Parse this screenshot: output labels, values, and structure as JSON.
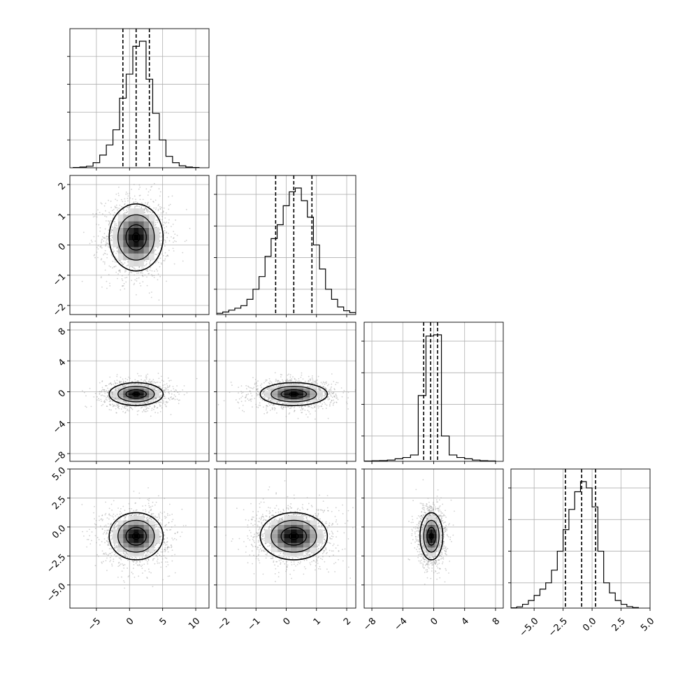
{
  "chart_data": {
    "type": "corner",
    "grid": true,
    "parameters": [
      {
        "range": [
          -9,
          12
        ],
        "x_ticks": [
          -5,
          0,
          5,
          10
        ],
        "x_tick_labels": [
          "−5",
          "0",
          "5",
          "10"
        ],
        "y_ticks": [],
        "y_tick_labels": [],
        "quantiles": [
          -1,
          1,
          3
        ],
        "hist_bins": [
          [
            -8.5,
            -7.5,
            0.002
          ],
          [
            -7.5,
            -6.5,
            0.006
          ],
          [
            -6.5,
            -5.5,
            0.012
          ],
          [
            -5.5,
            -4.5,
            0.04
          ],
          [
            -4.5,
            -3.5,
            0.1
          ],
          [
            -3.5,
            -2.5,
            0.18
          ],
          [
            -2.5,
            -1.5,
            0.3
          ],
          [
            -1.5,
            -0.5,
            0.55
          ],
          [
            -0.5,
            0.5,
            0.74
          ],
          [
            0.5,
            1.5,
            0.96
          ],
          [
            1.5,
            2.5,
            1.0
          ],
          [
            2.5,
            3.5,
            0.7
          ],
          [
            3.5,
            4.5,
            0.43
          ],
          [
            4.5,
            5.5,
            0.22
          ],
          [
            5.5,
            6.5,
            0.09
          ],
          [
            6.5,
            7.5,
            0.04
          ],
          [
            7.5,
            8.5,
            0.015
          ],
          [
            8.5,
            9.5,
            0.006
          ],
          [
            9.5,
            10.5,
            0.002
          ]
        ],
        "hist_ticks": [
          0.22,
          0.44,
          0.66,
          0.88
        ],
        "mean": 1.0,
        "sd": 2.2
      },
      {
        "range": [
          -2.3,
          2.3
        ],
        "x_ticks": [
          -2,
          -1,
          0,
          1,
          2
        ],
        "x_tick_labels": [
          "−2",
          "−1",
          "0",
          "1",
          "2"
        ],
        "y_ticks": [
          -2,
          -1,
          0,
          1,
          2
        ],
        "y_tick_labels": [
          "−2",
          "−1",
          "0",
          "1",
          "2"
        ],
        "quantiles": [
          -0.35,
          0.25,
          0.85
        ],
        "hist_bins": [
          [
            -2.3,
            -2.1,
            0.01
          ],
          [
            -2.1,
            -1.9,
            0.02
          ],
          [
            -1.9,
            -1.7,
            0.035
          ],
          [
            -1.7,
            -1.5,
            0.05
          ],
          [
            -1.5,
            -1.3,
            0.07
          ],
          [
            -1.3,
            -1.1,
            0.12
          ],
          [
            -1.1,
            -0.9,
            0.2
          ],
          [
            -0.9,
            -0.7,
            0.3
          ],
          [
            -0.7,
            -0.5,
            0.46
          ],
          [
            -0.5,
            -0.3,
            0.6
          ],
          [
            -0.3,
            -0.1,
            0.71
          ],
          [
            -0.1,
            0.1,
            0.86
          ],
          [
            0.1,
            0.3,
            0.97
          ],
          [
            0.3,
            0.5,
            1.0
          ],
          [
            0.5,
            0.7,
            0.9
          ],
          [
            0.7,
            0.9,
            0.77
          ],
          [
            0.9,
            1.1,
            0.55
          ],
          [
            1.1,
            1.3,
            0.36
          ],
          [
            1.3,
            1.5,
            0.2
          ],
          [
            1.5,
            1.7,
            0.12
          ],
          [
            1.7,
            1.9,
            0.06
          ],
          [
            1.9,
            2.1,
            0.03
          ],
          [
            2.1,
            2.3,
            0.015
          ]
        ],
        "hist_ticks": [
          0.2,
          0.45,
          0.7,
          0.95
        ],
        "mean": 0.25,
        "sd": 0.6
      },
      {
        "range": [
          -9,
          9
        ],
        "x_ticks": [
          -8,
          -4,
          0,
          4,
          8
        ],
        "x_tick_labels": [
          "−8",
          "−4",
          "0",
          "4",
          "8"
        ],
        "y_ticks": [
          -8,
          -4,
          0,
          4,
          8
        ],
        "y_tick_labels": [
          "−8",
          "−4",
          "0",
          "4",
          "8"
        ],
        "quantiles": [
          -1.3,
          -0.4,
          0.5
        ],
        "hist_bins": [
          [
            -9,
            -8,
            0.002
          ],
          [
            -8,
            -7,
            0.004
          ],
          [
            -7,
            -6,
            0.006
          ],
          [
            -6,
            -5,
            0.01
          ],
          [
            -5,
            -4,
            0.02
          ],
          [
            -4,
            -3,
            0.03
          ],
          [
            -3,
            -2,
            0.05
          ],
          [
            -2,
            -1,
            0.52
          ],
          [
            -1,
            0,
            0.99
          ],
          [
            0,
            1,
            1.0
          ],
          [
            1,
            2,
            0.2
          ],
          [
            2,
            3,
            0.05
          ],
          [
            3,
            4,
            0.03
          ],
          [
            4,
            5,
            0.02
          ],
          [
            5,
            6,
            0.01
          ],
          [
            6,
            7,
            0.005
          ],
          [
            7,
            8,
            0.003
          ]
        ],
        "hist_ticks": [
          0.2,
          0.45,
          0.7,
          0.95
        ],
        "mean": -0.3,
        "sd": 0.8
      },
      {
        "range": [
          -7,
          5
        ],
        "x_ticks": [
          -5,
          -2.5,
          0,
          2.5,
          5
        ],
        "x_tick_labels": [
          "−5.0",
          "−2.5",
          "0.0",
          "2.5",
          "5.0"
        ],
        "y_ticks": [
          -5,
          -2.5,
          0,
          2.5,
          5
        ],
        "y_tick_labels": [
          "−5.0",
          "−2.5",
          "0.0",
          "2.5",
          "5.0"
        ],
        "quantiles": [
          -2.3,
          -0.9,
          0.3
        ],
        "hist_bins": [
          [
            -7,
            -6.5,
            0.002
          ],
          [
            -6.5,
            -6,
            0.01
          ],
          [
            -6,
            -5.5,
            0.03
          ],
          [
            -5.5,
            -5,
            0.06
          ],
          [
            -5,
            -4.5,
            0.1
          ],
          [
            -4.5,
            -4,
            0.15
          ],
          [
            -4,
            -3.5,
            0.2
          ],
          [
            -3.5,
            -3,
            0.3
          ],
          [
            -3,
            -2.5,
            0.45
          ],
          [
            -2.5,
            -2,
            0.62
          ],
          [
            -2,
            -1.5,
            0.78
          ],
          [
            -1.5,
            -1,
            0.92
          ],
          [
            -1,
            -0.5,
            1.0
          ],
          [
            -0.5,
            0,
            0.95
          ],
          [
            0,
            0.5,
            0.8
          ],
          [
            0.5,
            1,
            0.45
          ],
          [
            1,
            1.5,
            0.2
          ],
          [
            1.5,
            2,
            0.12
          ],
          [
            2,
            2.5,
            0.06
          ],
          [
            2.5,
            3,
            0.03
          ],
          [
            3,
            3.5,
            0.012
          ],
          [
            3.5,
            4,
            0.004
          ]
        ],
        "hist_ticks": [
          0.2,
          0.45,
          0.7,
          0.95
        ],
        "mean": -0.8,
        "sd": 1.1
      }
    ],
    "pairs": [
      {
        "row": 1,
        "col": 0,
        "correlation": 0.0
      },
      {
        "row": 2,
        "col": 0,
        "correlation": 0.0
      },
      {
        "row": 2,
        "col": 1,
        "correlation": 0.0
      },
      {
        "row": 3,
        "col": 0,
        "correlation": 0.0
      },
      {
        "row": 3,
        "col": 1,
        "correlation": 0.0
      },
      {
        "row": 3,
        "col": 2,
        "correlation": 0.0
      }
    ],
    "colors": {
      "line": "#000000",
      "scatter": "#9a9a9a",
      "grid": "#b0b0b0",
      "density_low": "#f2f2f2",
      "density_high": "#000000"
    }
  }
}
